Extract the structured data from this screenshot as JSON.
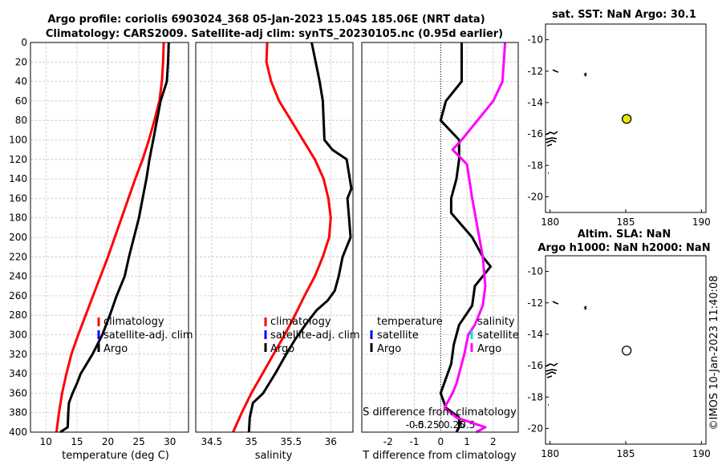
{
  "title": {
    "line1": "Argo profile: coriolis 6903024_368 05-Jan-2023 15.04S 185.06E (NRT data)",
    "line2": "Climatology: CARS2009. Satellite-adj clim: synTS_20230105.nc (0.95d earlier)"
  },
  "credit": "©IMOS 10-Jan-2023 11:40:08",
  "colors": {
    "climatology": "#ff0000",
    "satellite": "#0000ff",
    "argo": "#000000",
    "sat_salinity": "#00e0e0",
    "argo_salinity_diff": "#ff00ff",
    "float_marker": "#e6e600"
  },
  "chart_data": [
    {
      "type": "line",
      "id": "temperature",
      "xlabel": "temperature (deg C)",
      "xlim": [
        7.5,
        33
      ],
      "xticks": [
        10,
        15,
        20,
        25,
        30
      ],
      "ylim": [
        400,
        0
      ],
      "yticks": [
        0,
        20,
        40,
        60,
        80,
        100,
        120,
        140,
        160,
        180,
        200,
        220,
        240,
        260,
        280,
        300,
        320,
        340,
        360,
        380,
        400
      ],
      "legend": [
        "climatology",
        "satellite-adj. clim",
        "Argo"
      ],
      "series": [
        {
          "name": "climatology",
          "color": "#ff0000",
          "x": [
            29.0,
            28.9,
            28.7,
            28.3,
            27.5,
            26.6,
            25.6,
            24.4,
            23.3,
            22.2,
            21.1,
            20.0,
            18.8,
            17.6,
            16.4,
            15.2,
            14.1,
            13.3,
            12.6,
            12.1,
            11.7
          ],
          "y": [
            0,
            20,
            40,
            60,
            80,
            100,
            120,
            140,
            160,
            180,
            200,
            220,
            240,
            260,
            280,
            300,
            320,
            340,
            360,
            380,
            400
          ]
        },
        {
          "name": "Argo",
          "color": "#000000",
          "x": [
            29.8,
            29.7,
            29.5,
            28.5,
            27.9,
            27.3,
            26.7,
            26.2,
            25.6,
            25.0,
            24.2,
            23.4,
            22.7,
            21.4,
            20.3,
            19.1,
            17.5,
            15.6,
            15.0,
            14.3,
            13.7,
            13.6,
            13.5,
            12.3
          ],
          "y": [
            0,
            20,
            40,
            60,
            80,
            100,
            120,
            140,
            160,
            180,
            200,
            220,
            240,
            260,
            280,
            300,
            320,
            340,
            350,
            360,
            370,
            380,
            395,
            400
          ]
        }
      ]
    },
    {
      "type": "line",
      "id": "salinity",
      "xlabel": "salinity",
      "xlim": [
        34.3,
        36.28
      ],
      "xticks": [
        34.5,
        35,
        35.5,
        36
      ],
      "ylim": [
        400,
        0
      ],
      "legend": [
        "climatology",
        "satellite-adj. clim",
        "Argo"
      ],
      "series": [
        {
          "name": "climatology",
          "color": "#ff0000",
          "x": [
            35.2,
            35.19,
            35.25,
            35.35,
            35.5,
            35.65,
            35.8,
            35.91,
            35.97,
            36.0,
            35.98,
            35.9,
            35.8,
            35.67,
            35.55,
            35.42,
            35.28,
            35.14,
            35.0,
            34.88,
            34.77
          ],
          "y": [
            0,
            20,
            40,
            60,
            80,
            100,
            120,
            140,
            160,
            180,
            200,
            220,
            240,
            260,
            280,
            300,
            320,
            340,
            360,
            380,
            400
          ]
        },
        {
          "name": "Argo",
          "color": "#000000",
          "x": [
            35.76,
            35.81,
            35.86,
            35.9,
            35.91,
            35.92,
            36.02,
            36.2,
            36.23,
            36.26,
            36.21,
            36.23,
            36.25,
            36.2,
            36.15,
            36.1,
            36.05,
            35.96,
            35.82,
            35.68,
            35.55,
            35.44,
            35.3,
            35.15,
            35.02,
            34.98,
            34.97
          ],
          "y": [
            0,
            20,
            40,
            60,
            80,
            100,
            110,
            120,
            135,
            150,
            160,
            180,
            200,
            210,
            220,
            240,
            255,
            265,
            275,
            290,
            305,
            320,
            340,
            360,
            370,
            385,
            400
          ]
        }
      ]
    },
    {
      "type": "line",
      "id": "differences",
      "xlabel": "T difference from climatology",
      "xlim": [
        -3.0,
        2.95
      ],
      "xticks": [
        -2,
        -1,
        0,
        1,
        2
      ],
      "secondary_xlabel": "S difference from climatology",
      "secondary_xticks": [
        "-0.5",
        "-0.25",
        "0",
        "0.25",
        "0.5"
      ],
      "ylim": [
        400,
        0
      ],
      "legend_left": [
        "temperature",
        "satellite",
        "Argo"
      ],
      "legend_right": [
        "salinity",
        "satellite",
        "Argo"
      ],
      "series": [
        {
          "name": "T Argo - clim",
          "color": "#000000",
          "x": [
            0.8,
            0.8,
            0.8,
            0.2,
            0.0,
            0.7,
            0.7,
            0.6,
            0.4,
            0.4,
            1.2,
            1.6,
            1.9,
            1.3,
            1.2,
            0.7,
            0.5,
            0.4,
            0.0,
            0.2,
            0.7,
            0.7,
            0.6
          ],
          "y": [
            0,
            20,
            40,
            60,
            80,
            100,
            120,
            140,
            160,
            175,
            200,
            220,
            230,
            250,
            270,
            290,
            310,
            330,
            360,
            375,
            385,
            395,
            400
          ]
        },
        {
          "name": "S Argo - clim",
          "color": "#ff00ff",
          "x": [
            2.45,
            2.4,
            2.35,
            2.0,
            1.4,
            0.8,
            0.45,
            1.0,
            1.2,
            1.4,
            1.6,
            1.7,
            1.6,
            1.3,
            1.05,
            0.9,
            0.7,
            0.6,
            0.45,
            0.15,
            0.6,
            1.7,
            1.35
          ],
          "y": [
            0,
            20,
            40,
            60,
            80,
            100,
            110,
            125,
            160,
            190,
            220,
            250,
            270,
            290,
            300,
            320,
            340,
            350,
            360,
            375,
            385,
            395,
            400
          ]
        }
      ]
    },
    {
      "type": "scatter",
      "id": "map-sst",
      "title": "sat. SST: NaN Argo: 30.1",
      "xlim": [
        179.7,
        190.3
      ],
      "xticks": [
        180,
        185,
        190
      ],
      "ylim": [
        -21,
        -9
      ],
      "yticks": [
        -10,
        -12,
        -14,
        -16,
        -18,
        -20
      ],
      "points": [
        {
          "lon": 185.06,
          "lat": -15.04,
          "filled": true
        }
      ]
    },
    {
      "type": "scatter",
      "id": "map-sla",
      "title": "Altim. SLA: NaN",
      "title2": "Argo h1000: NaN h2000: NaN",
      "xlim": [
        179.7,
        190.3
      ],
      "xticks": [
        180,
        185,
        190
      ],
      "ylim": [
        -21,
        -9
      ],
      "yticks": [
        -10,
        -12,
        -14,
        -16,
        -18,
        -20
      ],
      "points": [
        {
          "lon": 185.06,
          "lat": -15.04,
          "filled": false
        }
      ]
    }
  ]
}
